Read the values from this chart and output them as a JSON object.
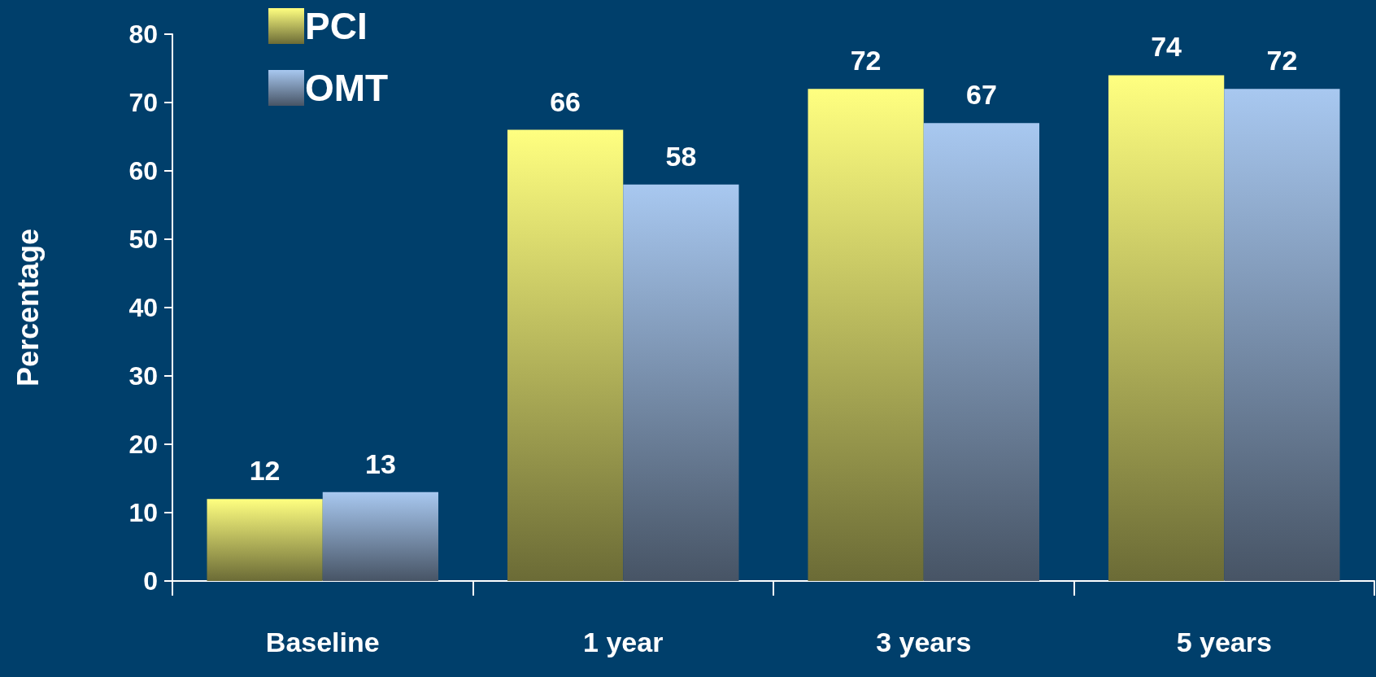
{
  "chart_data": {
    "type": "bar",
    "ylabel": "Percentage",
    "categories": [
      "Baseline",
      "1 year",
      "3 years",
      "5 years"
    ],
    "series": [
      {
        "name": "PCI",
        "color": "#ffff80",
        "values": [
          12,
          66,
          72,
          74
        ]
      },
      {
        "name": "OMT",
        "color": "#a8c8f0",
        "values": [
          13,
          58,
          67,
          72
        ]
      }
    ],
    "ylim": [
      0,
      80
    ],
    "yticks": [
      0,
      10,
      20,
      30,
      40,
      50,
      60,
      70,
      80
    ],
    "data_labels": true,
    "grid": false,
    "legend": "top left"
  }
}
